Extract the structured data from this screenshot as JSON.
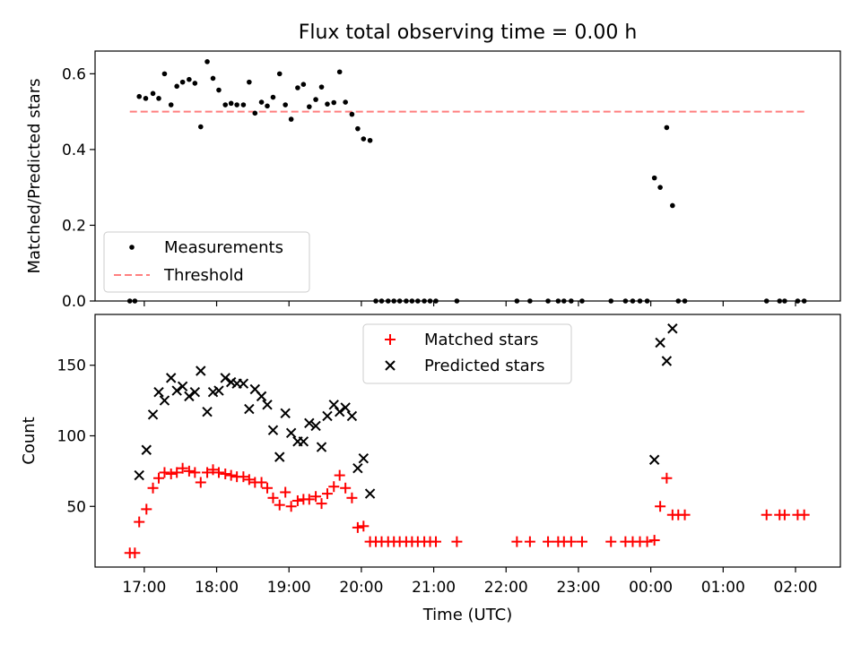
{
  "title": "Flux total observing time = 0.00 h",
  "chart_data": [
    {
      "type": "scatter",
      "ylabel": "Matched/Predicted stars",
      "xlim": [
        16.32,
        26.62
      ],
      "ylim": [
        0.0,
        0.66
      ],
      "yticks": [
        "0.0",
        "0.2",
        "0.4",
        "0.6"
      ],
      "ytick_values": [
        0.0,
        0.2,
        0.4,
        0.6
      ],
      "legend_position": "bottom-left",
      "series": [
        {
          "name": "Measurements",
          "marker": "dot",
          "color": "#000000",
          "points": [
            [
              16.8,
              0.0
            ],
            [
              16.87,
              0.0
            ],
            [
              16.93,
              0.54
            ],
            [
              17.02,
              0.535
            ],
            [
              17.12,
              0.548
            ],
            [
              17.2,
              0.535
            ],
            [
              17.28,
              0.6
            ],
            [
              17.37,
              0.518
            ],
            [
              17.45,
              0.567
            ],
            [
              17.53,
              0.578
            ],
            [
              17.62,
              0.585
            ],
            [
              17.7,
              0.575
            ],
            [
              17.78,
              0.46
            ],
            [
              17.87,
              0.632
            ],
            [
              17.95,
              0.588
            ],
            [
              18.03,
              0.557
            ],
            [
              18.12,
              0.518
            ],
            [
              18.2,
              0.522
            ],
            [
              18.28,
              0.518
            ],
            [
              18.37,
              0.518
            ],
            [
              18.45,
              0.578
            ],
            [
              18.53,
              0.496
            ],
            [
              18.62,
              0.525
            ],
            [
              18.7,
              0.515
            ],
            [
              18.78,
              0.538
            ],
            [
              18.87,
              0.6
            ],
            [
              18.95,
              0.518
            ],
            [
              19.03,
              0.48
            ],
            [
              19.12,
              0.563
            ],
            [
              19.2,
              0.572
            ],
            [
              19.28,
              0.513
            ],
            [
              19.37,
              0.532
            ],
            [
              19.45,
              0.565
            ],
            [
              19.53,
              0.52
            ],
            [
              19.62,
              0.524
            ],
            [
              19.7,
              0.605
            ],
            [
              19.78,
              0.525
            ],
            [
              19.87,
              0.493
            ],
            [
              19.95,
              0.455
            ],
            [
              20.03,
              0.428
            ],
            [
              20.12,
              0.424
            ],
            [
              20.2,
              0.0
            ],
            [
              20.28,
              0.0
            ],
            [
              20.37,
              0.0
            ],
            [
              20.45,
              0.0
            ],
            [
              20.53,
              0.0
            ],
            [
              20.62,
              0.0
            ],
            [
              20.7,
              0.0
            ],
            [
              20.78,
              0.0
            ],
            [
              20.87,
              0.0
            ],
            [
              20.95,
              0.0
            ],
            [
              21.03,
              0.0
            ],
            [
              21.32,
              0.0
            ],
            [
              22.15,
              0.0
            ],
            [
              22.33,
              0.0
            ],
            [
              22.58,
              0.0
            ],
            [
              22.72,
              0.0
            ],
            [
              22.8,
              0.0
            ],
            [
              22.9,
              0.0
            ],
            [
              23.05,
              0.0
            ],
            [
              23.45,
              0.0
            ],
            [
              23.65,
              0.0
            ],
            [
              23.75,
              0.0
            ],
            [
              23.85,
              0.0
            ],
            [
              23.95,
              0.0
            ],
            [
              24.05,
              0.325
            ],
            [
              24.13,
              0.3
            ],
            [
              24.22,
              0.458
            ],
            [
              24.3,
              0.252
            ],
            [
              24.38,
              0.0
            ],
            [
              24.47,
              0.0
            ],
            [
              25.6,
              0.0
            ],
            [
              25.78,
              0.0
            ],
            [
              25.85,
              0.0
            ],
            [
              26.03,
              0.0
            ],
            [
              26.12,
              0.0
            ]
          ]
        },
        {
          "name": "Threshold",
          "type": "line",
          "style": "dashed",
          "color": "#ff7f7f",
          "x": [
            16.8,
            26.15
          ],
          "values": [
            0.5,
            0.5
          ]
        }
      ]
    },
    {
      "type": "scatter",
      "ylabel": "Count",
      "xlabel": "Time (UTC)",
      "xlim": [
        16.32,
        26.62
      ],
      "ylim": [
        7.0,
        186.0
      ],
      "yticks": [
        "50",
        "100",
        "150"
      ],
      "ytick_values": [
        50,
        100,
        150
      ],
      "xticks": [
        "17:00",
        "18:00",
        "19:00",
        "20:00",
        "21:00",
        "22:00",
        "23:00",
        "00:00",
        "01:00",
        "02:00"
      ],
      "xtick_values": [
        17,
        18,
        19,
        20,
        21,
        22,
        23,
        24,
        25,
        26
      ],
      "legend_position": "top-center",
      "series": [
        {
          "name": "Matched stars",
          "marker": "plus",
          "color": "#ff0000",
          "points": [
            [
              16.8,
              17
            ],
            [
              16.87,
              17
            ],
            [
              16.93,
              39
            ],
            [
              17.03,
              48
            ],
            [
              17.12,
              63
            ],
            [
              17.2,
              70
            ],
            [
              17.28,
              74
            ],
            [
              17.37,
              73
            ],
            [
              17.45,
              74
            ],
            [
              17.53,
              77
            ],
            [
              17.62,
              75
            ],
            [
              17.7,
              74
            ],
            [
              17.78,
              67
            ],
            [
              17.87,
              74
            ],
            [
              17.95,
              76
            ],
            [
              18.03,
              74
            ],
            [
              18.12,
              73
            ],
            [
              18.2,
              72
            ],
            [
              18.28,
              71
            ],
            [
              18.37,
              71
            ],
            [
              18.45,
              69
            ],
            [
              18.53,
              67
            ],
            [
              18.62,
              67
            ],
            [
              18.7,
              63
            ],
            [
              18.78,
              56
            ],
            [
              18.87,
              51
            ],
            [
              18.95,
              60
            ],
            [
              19.03,
              50
            ],
            [
              19.12,
              54
            ],
            [
              19.2,
              55
            ],
            [
              19.28,
              55
            ],
            [
              19.37,
              57
            ],
            [
              19.45,
              52
            ],
            [
              19.53,
              59
            ],
            [
              19.62,
              64
            ],
            [
              19.7,
              72
            ],
            [
              19.78,
              63
            ],
            [
              19.87,
              56
            ],
            [
              19.95,
              35
            ],
            [
              20.03,
              36
            ],
            [
              20.12,
              25
            ],
            [
              20.2,
              25
            ],
            [
              20.28,
              25
            ],
            [
              20.37,
              25
            ],
            [
              20.45,
              25
            ],
            [
              20.53,
              25
            ],
            [
              20.62,
              25
            ],
            [
              20.7,
              25
            ],
            [
              20.78,
              25
            ],
            [
              20.87,
              25
            ],
            [
              20.95,
              25
            ],
            [
              21.03,
              25
            ],
            [
              21.32,
              25
            ],
            [
              22.15,
              25
            ],
            [
              22.33,
              25
            ],
            [
              22.58,
              25
            ],
            [
              22.72,
              25
            ],
            [
              22.8,
              25
            ],
            [
              22.9,
              25
            ],
            [
              23.05,
              25
            ],
            [
              23.45,
              25
            ],
            [
              23.65,
              25
            ],
            [
              23.75,
              25
            ],
            [
              23.85,
              25
            ],
            [
              23.95,
              25
            ],
            [
              24.05,
              26
            ],
            [
              24.13,
              50
            ],
            [
              24.22,
              70
            ],
            [
              24.3,
              44
            ],
            [
              24.38,
              44
            ],
            [
              24.47,
              44
            ],
            [
              25.6,
              44
            ],
            [
              25.78,
              44
            ],
            [
              25.85,
              44
            ],
            [
              26.03,
              44
            ],
            [
              26.12,
              44
            ]
          ]
        },
        {
          "name": "Predicted stars",
          "marker": "x",
          "color": "#000000",
          "points": [
            [
              16.93,
              72
            ],
            [
              17.03,
              90
            ],
            [
              17.12,
              115
            ],
            [
              17.2,
              131
            ],
            [
              17.28,
              125
            ],
            [
              17.37,
              141
            ],
            [
              17.45,
              132
            ],
            [
              17.53,
              135
            ],
            [
              17.62,
              128
            ],
            [
              17.7,
              131
            ],
            [
              17.78,
              146
            ],
            [
              17.87,
              117
            ],
            [
              17.95,
              131
            ],
            [
              18.03,
              132
            ],
            [
              18.12,
              141
            ],
            [
              18.2,
              138
            ],
            [
              18.28,
              137
            ],
            [
              18.37,
              137
            ],
            [
              18.45,
              119
            ],
            [
              18.53,
              133
            ],
            [
              18.62,
              128
            ],
            [
              18.7,
              122
            ],
            [
              18.78,
              104
            ],
            [
              18.87,
              85
            ],
            [
              18.95,
              116
            ],
            [
              19.03,
              102
            ],
            [
              19.12,
              96
            ],
            [
              19.2,
              96
            ],
            [
              19.28,
              109
            ],
            [
              19.37,
              107
            ],
            [
              19.45,
              92
            ],
            [
              19.53,
              114
            ],
            [
              19.62,
              122
            ],
            [
              19.7,
              117
            ],
            [
              19.78,
              120
            ],
            [
              19.87,
              114
            ],
            [
              19.95,
              77
            ],
            [
              20.03,
              84
            ],
            [
              20.12,
              59
            ],
            [
              24.05,
              83
            ],
            [
              24.13,
              166
            ],
            [
              24.22,
              153
            ],
            [
              24.3,
              176
            ]
          ]
        }
      ]
    }
  ]
}
